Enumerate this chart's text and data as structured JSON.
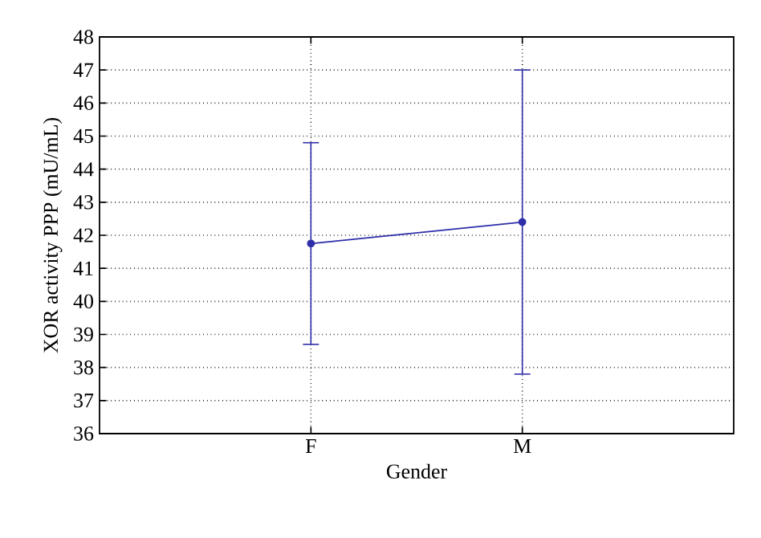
{
  "chart_data": {
    "type": "line",
    "xlabel": "Gender",
    "ylabel": "XOR activity PPP (mU/mL)",
    "categories": [
      "F",
      "M"
    ],
    "values": [
      41.75,
      42.4
    ],
    "errors": [
      [
        38.7,
        44.8
      ],
      [
        37.8,
        47.0
      ]
    ],
    "color": "#2e2eaa",
    "marker": "circle",
    "line_style": "solid",
    "ylim": [
      36,
      48
    ],
    "yticks": [
      36,
      37,
      38,
      39,
      40,
      41,
      42,
      43,
      44,
      45,
      46,
      47,
      48
    ],
    "grid": true
  }
}
